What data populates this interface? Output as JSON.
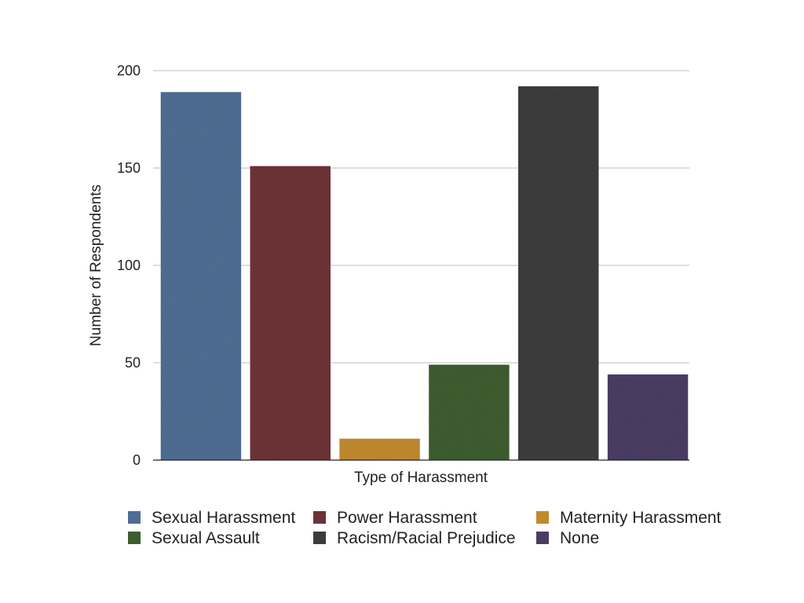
{
  "chart_data": {
    "type": "bar",
    "title": "",
    "xlabel": "Type of Harassment",
    "ylabel": "Number of Respondents",
    "ylim": [
      0,
      200
    ],
    "yticks": [
      0,
      50,
      100,
      150,
      200
    ],
    "grid": true,
    "legend_position": "bottom",
    "series": [
      {
        "name": "Sexual Harassment",
        "value": 189,
        "color": "#4f6d93"
      },
      {
        "name": "Power Harassment",
        "value": 151,
        "color": "#6d3236"
      },
      {
        "name": "Maternity Harassment",
        "value": 11,
        "color": "#c08a2e"
      },
      {
        "name": "Sexual Assault",
        "value": 49,
        "color": "#3d5d2f"
      },
      {
        "name": "Racism/Racial Prejudice",
        "value": 192,
        "color": "#3c3c3c"
      },
      {
        "name": "None",
        "value": 44,
        "color": "#4a3d63"
      }
    ]
  }
}
